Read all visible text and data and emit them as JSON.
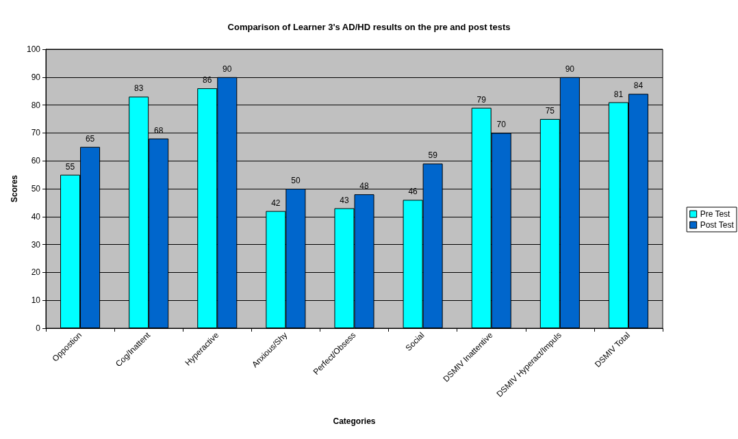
{
  "chart_data": {
    "type": "bar",
    "title": "Comparison of Learner 3's AD/HD results on the pre and post tests",
    "xlabel": "Categories",
    "ylabel": "Scores",
    "categories": [
      "Oppostion",
      "Cog/Inattent",
      "Hyperactive",
      "Anxious/Shy",
      "Perfect/Obsess",
      "Social",
      "DSMIV Inattentive",
      "DSMIV Hyperact/Impuls",
      "DSMIV Total"
    ],
    "series": [
      {
        "name": "Pre Test",
        "color": "#00ffff",
        "values": [
          55,
          83,
          86,
          42,
          43,
          46,
          79,
          75,
          81
        ]
      },
      {
        "name": "Post Test",
        "color": "#0066cc",
        "values": [
          65,
          68,
          90,
          50,
          48,
          59,
          70,
          90,
          84
        ]
      }
    ],
    "ylim": [
      0,
      100
    ],
    "yticks": [
      0,
      10,
      20,
      30,
      40,
      50,
      60,
      70,
      80,
      90,
      100
    ],
    "grid": "y",
    "legend": "right",
    "data_labels": true
  }
}
